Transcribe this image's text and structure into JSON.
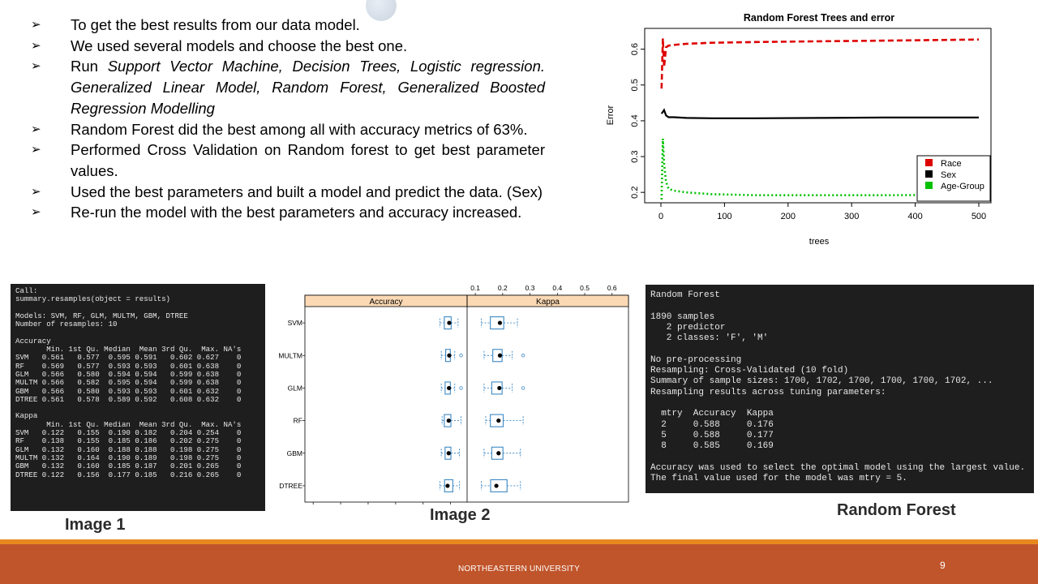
{
  "bullets": [
    {
      "parts": [
        {
          "t": "To get the best results from our data model.",
          "i": false
        }
      ]
    },
    {
      "parts": [
        {
          "t": "We used several models and choose the best one.",
          "i": false
        }
      ]
    },
    {
      "parts": [
        {
          "t": "Run ",
          "i": false
        },
        {
          "t": "Support Vector Machine, Decision Trees, Logistic regression. Generalized Linear Model, Random Forest, Generalized Boosted Regression Modelling",
          "i": true
        }
      ]
    },
    {
      "parts": [
        {
          "t": "Random Forest did the best among all with accuracy metrics of 63%.",
          "i": false
        }
      ]
    },
    {
      "parts": [
        {
          "t": "Performed Cross Validation on Random forest to get best parameter values.",
          "i": false
        }
      ]
    },
    {
      "parts": [
        {
          "t": "Used the best parameters and built a model and predict the data. (Sex)",
          "i": false
        }
      ]
    },
    {
      "parts": [
        {
          "t": "Re-run the model with the best parameters and accuracy increased.",
          "i": false
        }
      ]
    }
  ],
  "bullet_symbol": "➢",
  "console1": {
    "lines": [
      "Call:",
      "summary.resamples(object = results)",
      "",
      "Models: SVM, RF, GLM, MULTM, GBM, DTREE",
      "Number of resamples: 10",
      "",
      "Accuracy",
      "       Min. 1st Qu. Median  Mean 3rd Qu.  Max. NA's",
      "SVM   0.561   0.577  0.595 0.591   0.602 0.627    0",
      "RF    0.569   0.577  0.593 0.593   0.601 0.638    0",
      "GLM   0.566   0.580  0.594 0.594   0.599 0.638    0",
      "MULTM 0.566   0.582  0.595 0.594   0.599 0.638    0",
      "GBM   0.566   0.580  0.593 0.593   0.601 0.632    0",
      "DTREE 0.561   0.578  0.589 0.592   0.608 0.632    0",
      "",
      "Kappa",
      "       Min. 1st Qu. Median  Mean 3rd Qu.  Max. NA's",
      "SVM   0.122   0.155  0.190 0.182   0.204 0.254    0",
      "RF    0.138   0.155  0.185 0.186   0.202 0.275    0",
      "GLM   0.132   0.160  0.188 0.188   0.198 0.275    0",
      "MULTM 0.132   0.164  0.190 0.189   0.198 0.275    0",
      "GBM   0.132   0.160  0.185 0.187   0.201 0.265    0",
      "DTREE 0.122   0.156  0.177 0.185   0.216 0.265    0"
    ]
  },
  "console3": {
    "lines": [
      "Random Forest",
      "",
      "1890 samples",
      "   2 predictor",
      "   2 classes: 'F', 'M'",
      "",
      "No pre-processing",
      "Resampling: Cross-Validated (10 fold)",
      "Summary of sample sizes: 1700, 1702, 1700, 1700, 1700, 1702, ...",
      "Resampling results across tuning parameters:",
      "",
      "  mtry  Accuracy  Kappa",
      "  2     0.588     0.176",
      "  5     0.588     0.177",
      "  8     0.585     0.169",
      "",
      "Accuracy was used to select the optimal model using the largest value.",
      "The final value used for the model was mtry = 5."
    ]
  },
  "captions": {
    "image1": "Image 1",
    "image2": "Image 2",
    "random_forest": "Random Forest"
  },
  "footer": {
    "text": "NORTHEASTERN UNIVERSITY",
    "page": "9"
  },
  "colors": {
    "race": "#dd0000",
    "sex": "#000000",
    "age": "#00c000",
    "footer_bar": "#c0552b",
    "footer_line": "#e8891f",
    "box_blue": "#3b88c4",
    "strip": "#fbd9b4"
  },
  "chart_data": [
    {
      "type": "line",
      "title": "Random Forest Trees and error",
      "xlabel": "trees",
      "ylabel": "Error",
      "xlim": [
        0,
        500
      ],
      "ylim": [
        0.18,
        0.64
      ],
      "xticks": [
        "0",
        "100",
        "200",
        "300",
        "400",
        "500"
      ],
      "yticks": [
        "0.2",
        "0.3",
        "0.4",
        "0.5",
        "0.6"
      ],
      "legend_position": "bottom-right",
      "series": [
        {
          "name": "Race",
          "style": "dashed",
          "x": [
            1,
            3,
            5,
            8,
            12,
            20,
            40,
            80,
            150,
            250,
            350,
            450,
            500
          ],
          "y": [
            0.49,
            0.63,
            0.55,
            0.605,
            0.61,
            0.612,
            0.615,
            0.618,
            0.62,
            0.622,
            0.624,
            0.626,
            0.627
          ]
        },
        {
          "name": "Sex",
          "style": "solid",
          "x": [
            1,
            3,
            5,
            8,
            12,
            20,
            40,
            80,
            150,
            250,
            350,
            450,
            500
          ],
          "y": [
            0.42,
            0.425,
            0.43,
            0.415,
            0.41,
            0.41,
            0.408,
            0.407,
            0.407,
            0.408,
            0.409,
            0.409,
            0.409
          ]
        },
        {
          "name": "Age-Group",
          "style": "dotted",
          "x": [
            1,
            3,
            5,
            8,
            12,
            20,
            40,
            80,
            150,
            250,
            350,
            450,
            500
          ],
          "y": [
            0.18,
            0.35,
            0.28,
            0.23,
            0.21,
            0.205,
            0.2,
            0.195,
            0.192,
            0.192,
            0.192,
            0.193,
            0.193
          ]
        }
      ]
    },
    {
      "type": "box",
      "panels": [
        "Accuracy",
        "Kappa"
      ],
      "models": [
        "SVM",
        "MULTM",
        "GLM",
        "RF",
        "GBM",
        "DTREE"
      ],
      "xlim": [
        0.07,
        0.66
      ],
      "xticks": [
        "0.1",
        "0.2",
        "0.3",
        "0.4",
        "0.5",
        "0.6"
      ],
      "stats": {
        "Accuracy": {
          "SVM": {
            "min": 0.561,
            "q1": 0.577,
            "med": 0.595,
            "q3": 0.602,
            "max": 0.627,
            "out": []
          },
          "MULTM": {
            "min": 0.566,
            "q1": 0.582,
            "med": 0.595,
            "q3": 0.599,
            "max": 0.615,
            "out": [
              0.638
            ]
          },
          "GLM": {
            "min": 0.566,
            "q1": 0.58,
            "med": 0.594,
            "q3": 0.599,
            "max": 0.615,
            "out": [
              0.638
            ]
          },
          "RF": {
            "min": 0.569,
            "q1": 0.577,
            "med": 0.593,
            "q3": 0.601,
            "max": 0.638,
            "out": []
          },
          "GBM": {
            "min": 0.566,
            "q1": 0.58,
            "med": 0.593,
            "q3": 0.601,
            "max": 0.632,
            "out": []
          },
          "DTREE": {
            "min": 0.561,
            "q1": 0.578,
            "med": 0.589,
            "q3": 0.608,
            "max": 0.632,
            "out": []
          }
        },
        "Kappa": {
          "SVM": {
            "min": 0.122,
            "q1": 0.155,
            "med": 0.19,
            "q3": 0.204,
            "max": 0.254,
            "out": []
          },
          "MULTM": {
            "min": 0.132,
            "q1": 0.164,
            "med": 0.19,
            "q3": 0.198,
            "max": 0.235,
            "out": [
              0.275
            ]
          },
          "GLM": {
            "min": 0.132,
            "q1": 0.16,
            "med": 0.188,
            "q3": 0.198,
            "max": 0.235,
            "out": [
              0.275
            ]
          },
          "RF": {
            "min": 0.138,
            "q1": 0.155,
            "med": 0.185,
            "q3": 0.202,
            "max": 0.275,
            "out": []
          },
          "GBM": {
            "min": 0.132,
            "q1": 0.16,
            "med": 0.185,
            "q3": 0.201,
            "max": 0.265,
            "out": []
          },
          "DTREE": {
            "min": 0.122,
            "q1": 0.156,
            "med": 0.177,
            "q3": 0.216,
            "max": 0.265,
            "out": []
          }
        }
      }
    }
  ]
}
